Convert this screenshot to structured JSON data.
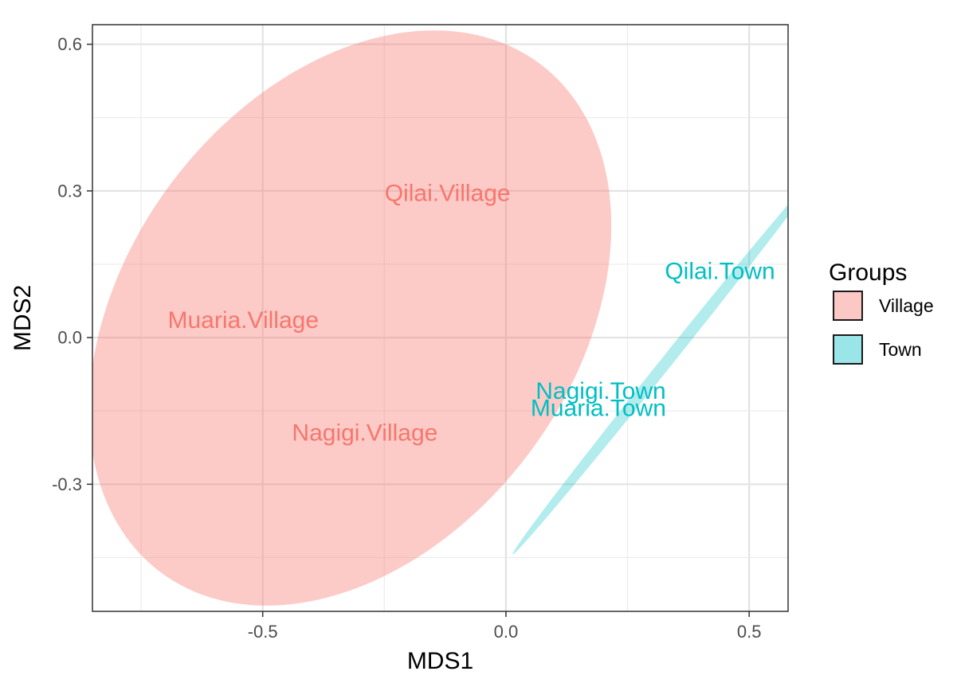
{
  "chart_data": {
    "type": "scatter",
    "title": "",
    "xlabel": "MDS1",
    "ylabel": "MDS2",
    "xlim": [
      -0.85,
      0.58
    ],
    "ylim": [
      -0.56,
      0.64
    ],
    "x_ticks": [
      -0.5,
      0.0,
      0.5
    ],
    "x_tick_labels": [
      "-0.5",
      "0.0",
      "0.5"
    ],
    "y_ticks": [
      -0.3,
      0.0,
      0.3,
      0.6
    ],
    "y_tick_labels": [
      "-0.3",
      "0.0",
      "0.3",
      "0.6"
    ],
    "grid": true,
    "legend": {
      "title": "Groups",
      "position": "right",
      "entries": [
        {
          "label": "Village",
          "fill": "#F8766D"
        },
        {
          "label": "Town",
          "fill": "#00BFC4"
        }
      ]
    },
    "points": [
      {
        "label": "Qilai.Village",
        "group": "Village",
        "x": -0.12,
        "y": 0.295
      },
      {
        "label": "Muaria.Village",
        "group": "Village",
        "x": -0.54,
        "y": 0.035
      },
      {
        "label": "Nagigi.Village",
        "group": "Village",
        "x": -0.29,
        "y": -0.195
      },
      {
        "label": "Qilai.Town",
        "group": "Town",
        "x": 0.44,
        "y": 0.135
      },
      {
        "label": "Nagigi.Town",
        "group": "Town",
        "x": 0.195,
        "y": -0.11
      },
      {
        "label": "Muaria.Town",
        "group": "Town",
        "x": 0.19,
        "y": -0.145
      }
    ],
    "ellipses": [
      {
        "group": "Village",
        "center": [
          -0.32,
          0.04
        ],
        "semi_axes": [
          0.46,
          0.65
        ],
        "angle_deg": -37,
        "fill": "#F8766D",
        "opacity": 0.38
      },
      {
        "group": "Town",
        "center": [
          0.33,
          -0.05
        ],
        "semi_axes": [
          0.505,
          0.012
        ],
        "angle_deg": 51.2,
        "fill": "#00BFC4",
        "opacity": 0.3
      }
    ]
  }
}
